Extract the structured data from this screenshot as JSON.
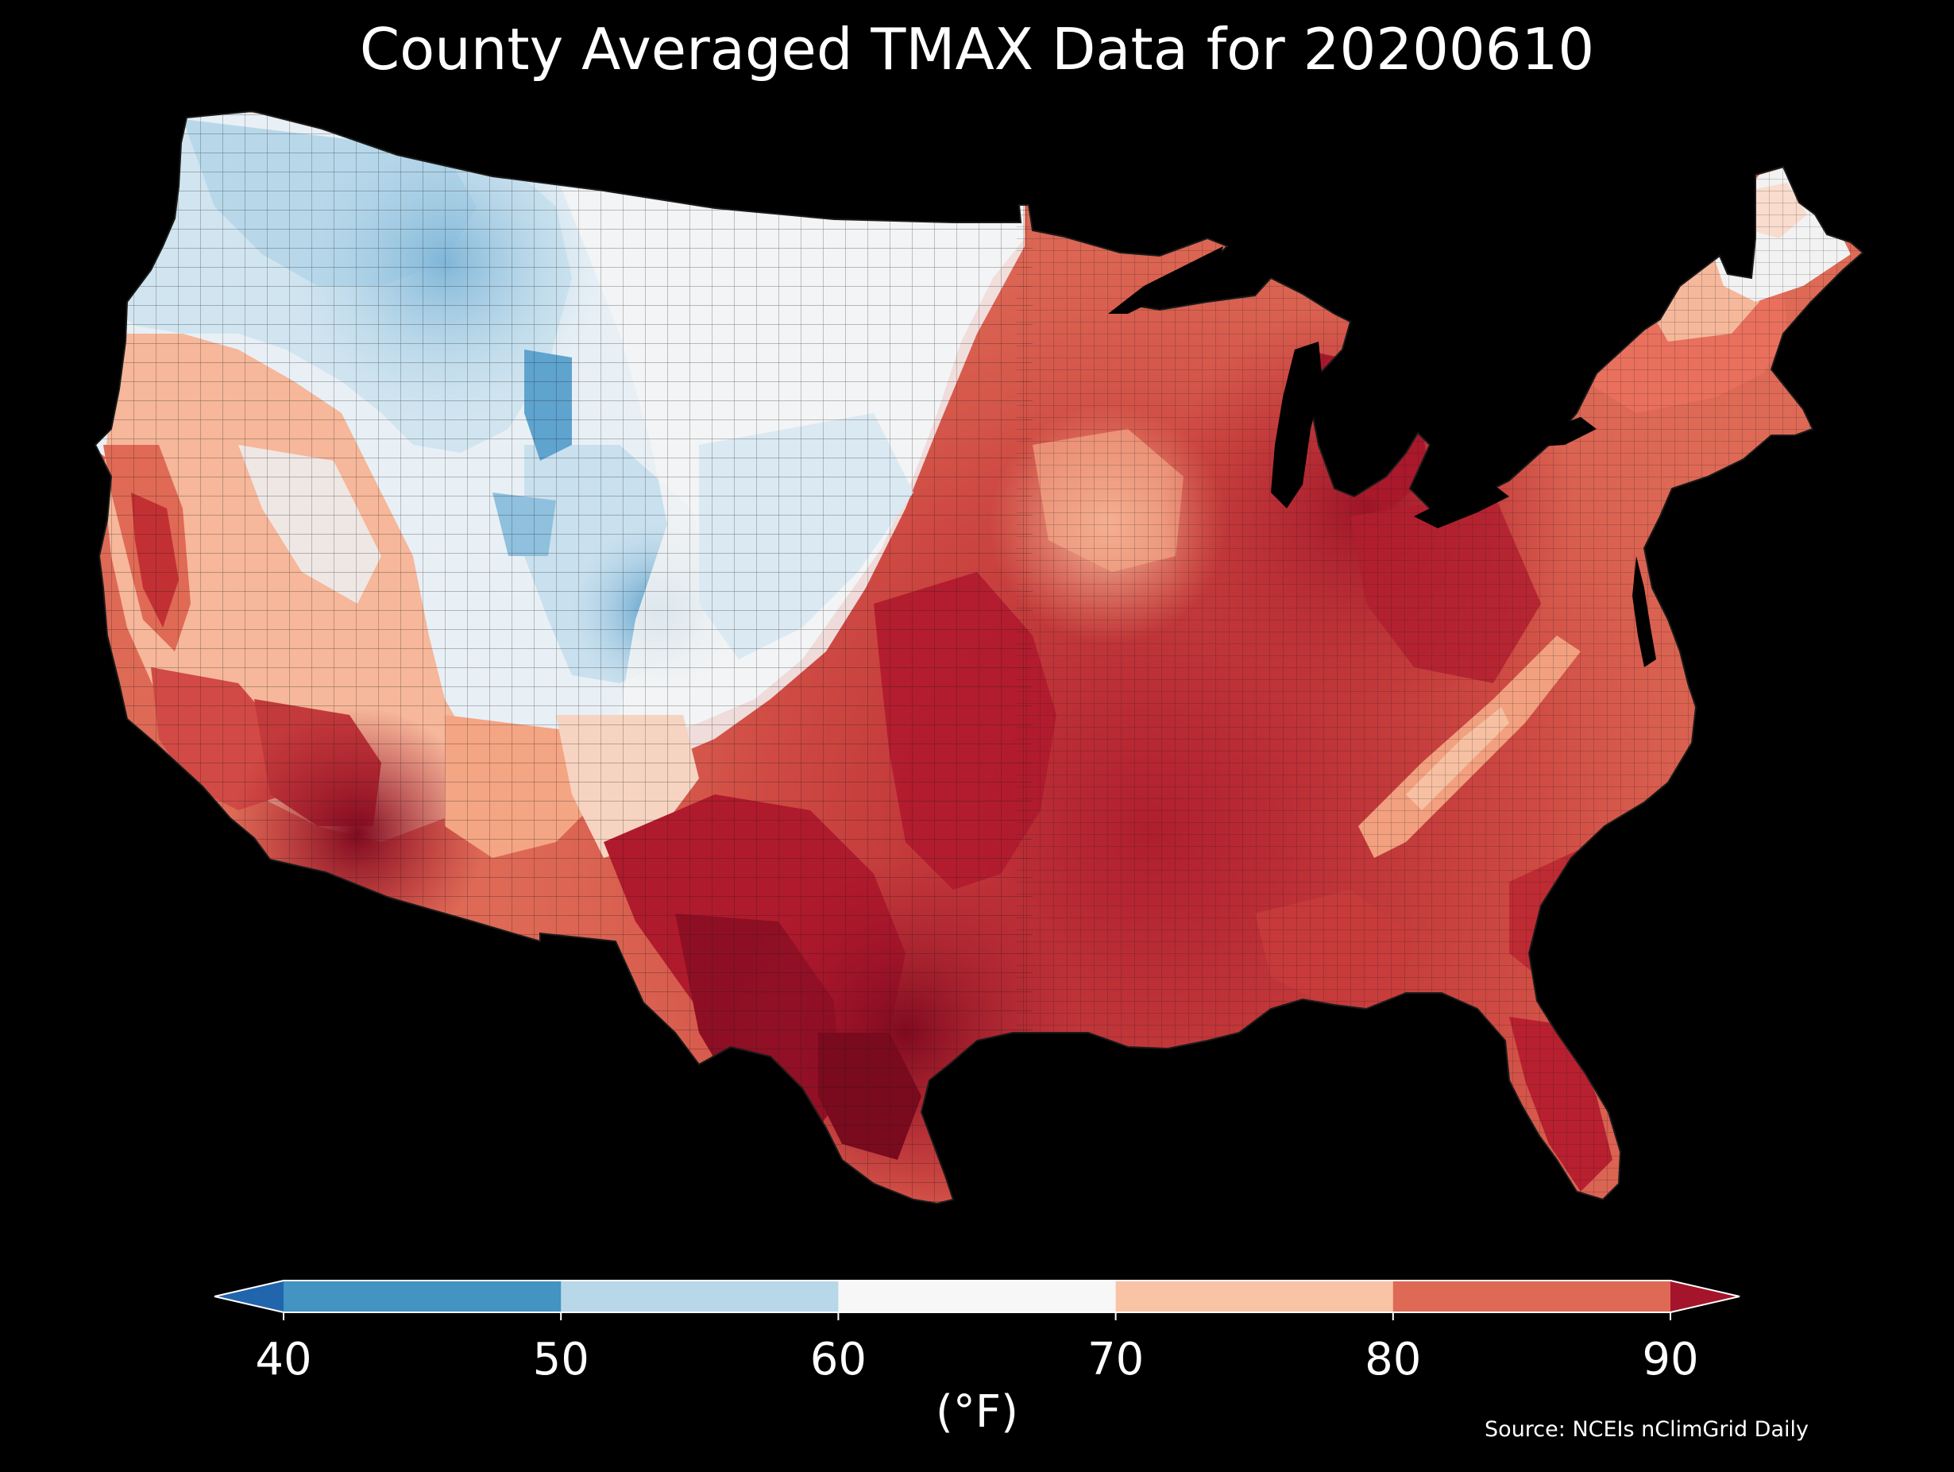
{
  "title": "County Averaged TMAX Data for 20200610",
  "colorbar": {
    "unit_label": "(°F)",
    "ticks": [
      "40",
      "50",
      "60",
      "70",
      "80",
      "90"
    ],
    "bins": [
      {
        "range": "<40",
        "color": "#2166ac"
      },
      {
        "range": "40-50",
        "color": "#4393c3"
      },
      {
        "range": "50-60",
        "color": "#b8d8ea"
      },
      {
        "range": "60-70",
        "color": "#f7f7f7"
      },
      {
        "range": "70-80",
        "color": "#f9c3a5"
      },
      {
        "range": "80-90",
        "color": "#de6a56"
      },
      {
        "range": ">90",
        "color": "#a4142a"
      }
    ],
    "extend": "both"
  },
  "source": "Source: NCEIs nClimGrid Daily",
  "colors": {
    "background": "#000000",
    "text": "#ffffff",
    "county_border": "#1a1a1a"
  }
}
